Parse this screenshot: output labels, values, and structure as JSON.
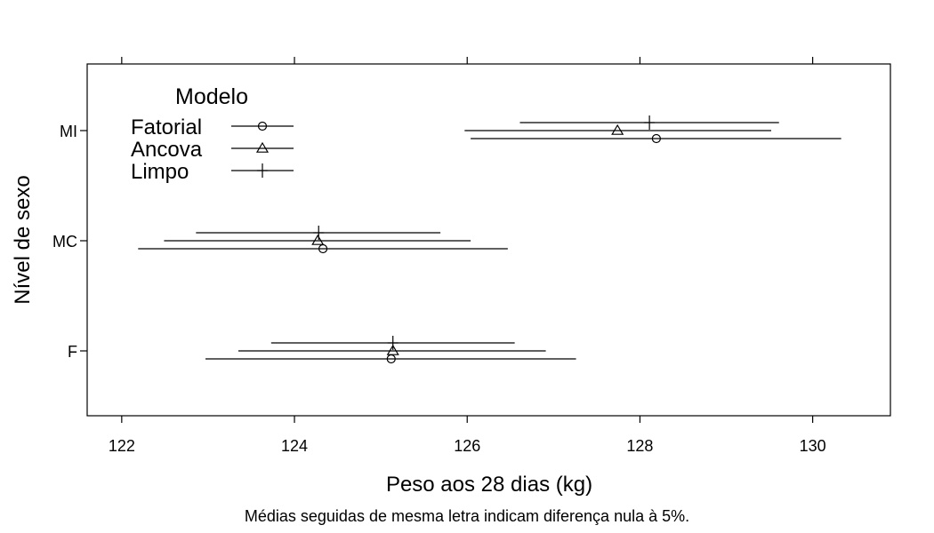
{
  "chart_data": {
    "type": "dotplot-intervals",
    "xlabel": "Peso aos 28 dias (kg)",
    "ylabel": "Nível de sexo",
    "caption": "Médias seguidas de mesma letra indicam diferença nula à 5%.",
    "xlim": [
      121.6,
      130.9
    ],
    "x_ticks": [
      "122",
      "124",
      "126",
      "128",
      "130"
    ],
    "categories": [
      "F",
      "MC",
      "MI"
    ],
    "legend": {
      "title": "Modelo",
      "placement": "top-left",
      "entries": [
        {
          "label": "Fatorial",
          "symbol": "circle"
        },
        {
          "label": "Ancova",
          "symbol": "triangle"
        },
        {
          "label": "Limpo",
          "symbol": "plus"
        }
      ]
    },
    "series": [
      {
        "name": "Fatorial",
        "symbol": "circle",
        "offset": -1,
        "points": [
          {
            "category": "F",
            "estimate": 125.12,
            "lower": 122.97,
            "upper": 127.26
          },
          {
            "category": "MC",
            "estimate": 124.33,
            "lower": 122.19,
            "upper": 126.47
          },
          {
            "category": "MI",
            "estimate": 128.19,
            "lower": 126.04,
            "upper": 130.33
          }
        ]
      },
      {
        "name": "Ancova",
        "symbol": "triangle",
        "offset": 0,
        "points": [
          {
            "category": "F",
            "estimate": 125.14,
            "lower": 123.35,
            "upper": 126.91
          },
          {
            "category": "MC",
            "estimate": 124.27,
            "lower": 122.49,
            "upper": 126.04
          },
          {
            "category": "MI",
            "estimate": 127.74,
            "lower": 125.97,
            "upper": 129.52
          }
        ]
      },
      {
        "name": "Limpo",
        "symbol": "plus",
        "offset": 1,
        "points": [
          {
            "category": "F",
            "estimate": 125.14,
            "lower": 123.73,
            "upper": 126.55
          },
          {
            "category": "MC",
            "estimate": 124.28,
            "lower": 122.86,
            "upper": 125.69
          },
          {
            "category": "MI",
            "estimate": 128.11,
            "lower": 126.61,
            "upper": 129.61
          }
        ]
      }
    ]
  }
}
